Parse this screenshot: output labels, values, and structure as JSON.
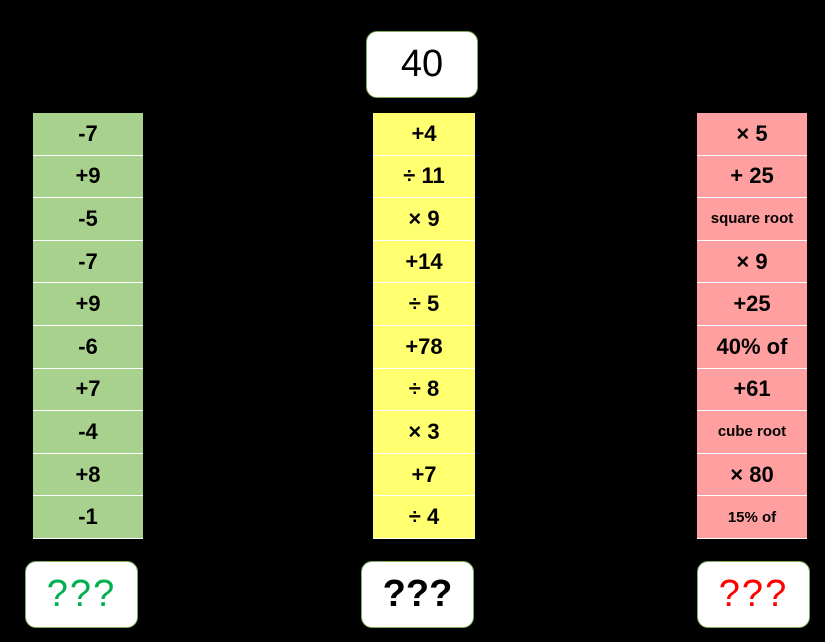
{
  "start_value": "40",
  "columns": {
    "green": [
      "-7",
      "+9",
      "-5",
      "-7",
      "+9",
      "-6",
      "+7",
      "-4",
      "+8",
      "-1"
    ],
    "yellow": [
      "+4",
      "÷ 11",
      "× 9",
      "+14",
      "÷ 5",
      "+78",
      "÷ 8",
      "× 3",
      "+7",
      "÷ 4"
    ],
    "red": [
      "× 5",
      "+ 25",
      "square root",
      "× 9",
      "+25",
      "40% of",
      "+61",
      "cube root",
      "× 80",
      "15% of"
    ]
  },
  "answers": {
    "green": "???",
    "yellow": "???",
    "red": "???"
  },
  "colors": {
    "background": "#000000",
    "green_cell": "#a9d18e",
    "yellow_cell": "#ffff6f",
    "red_cell": "#ff9f9f",
    "green_answer_text": "#00b050",
    "red_answer_text": "#ff0000"
  }
}
